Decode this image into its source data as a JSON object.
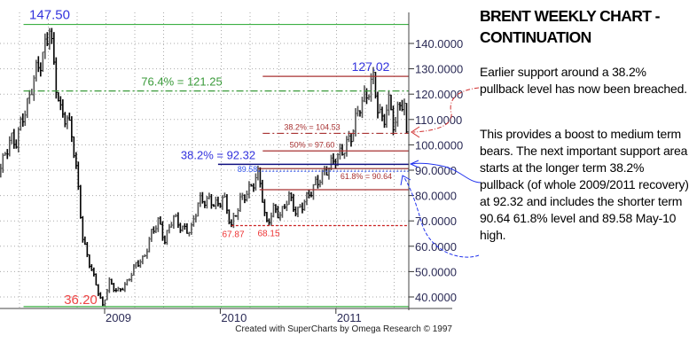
{
  "panel": {
    "title": "BRENT WEEKLY CHART - CONTINUATION",
    "paragraph1": "Earlier support around a 38.2% pullback level has now been breached.",
    "paragraph2": "This provides a boost to medium term bears. The next important support area starts at the longer term 38.2% pullback (of whole 2009/2011 recovery) at 92.32 and includes the shorter term 90.64 61.8% level and 89.58 May-10 high."
  },
  "footer": "Created with SuperCharts by Omega Research © 1997",
  "chart_data": {
    "type": "bar",
    "subtype": "ohlc-weekly",
    "instrument": "Brent",
    "ylim": [
      35,
      150
    ],
    "y_ticks": [
      40,
      50,
      60,
      70,
      80,
      90,
      100,
      110,
      120,
      130,
      140
    ],
    "y_tick_labels": [
      "40.0000",
      "50.0000",
      "60.0000",
      "70.0000",
      "80.0000",
      "90.0000",
      "100.0000",
      "110.0000",
      "120.0000",
      "130.0000",
      "140.0000"
    ],
    "x_ticks": [
      {
        "date": "2009-01-01",
        "label": "2009"
      },
      {
        "date": "2010-01-01",
        "label": "2010"
      },
      {
        "date": "2011-01-01",
        "label": "2011"
      }
    ],
    "xlim": [
      "2008-01-31",
      "2011-08-20"
    ],
    "grid": true,
    "price_path": [
      [
        "2008-02-01",
        90
      ],
      [
        "2008-02-20",
        95
      ],
      [
        "2008-03-10",
        103
      ],
      [
        "2008-03-25",
        100
      ],
      [
        "2008-04-15",
        110
      ],
      [
        "2008-05-08",
        118
      ],
      [
        "2008-05-25",
        128
      ],
      [
        "2008-06-15",
        133
      ],
      [
        "2008-07-04",
        142
      ],
      [
        "2008-07-11",
        147.5
      ],
      [
        "2008-07-30",
        125
      ],
      [
        "2008-08-15",
        113
      ],
      [
        "2008-09-05",
        110
      ],
      [
        "2008-09-20",
        104
      ],
      [
        "2008-10-08",
        85
      ],
      [
        "2008-10-25",
        62
      ],
      [
        "2008-11-15",
        53
      ],
      [
        "2008-12-05",
        45
      ],
      [
        "2008-12-26",
        36.2
      ],
      [
        "2009-01-15",
        46
      ],
      [
        "2009-02-10",
        42
      ],
      [
        "2009-03-10",
        45
      ],
      [
        "2009-04-10",
        53
      ],
      [
        "2009-05-05",
        55
      ],
      [
        "2009-05-28",
        65
      ],
      [
        "2009-06-20",
        70
      ],
      [
        "2009-07-10",
        62
      ],
      [
        "2009-08-05",
        72
      ],
      [
        "2009-09-01",
        67
      ],
      [
        "2009-09-30",
        66
      ],
      [
        "2009-10-25",
        78
      ],
      [
        "2009-11-30",
        78
      ],
      [
        "2009-12-25",
        76
      ],
      [
        "2010-01-10",
        80
      ],
      [
        "2010-02-05",
        67.87
      ],
      [
        "2010-03-05",
        78
      ],
      [
        "2010-04-01",
        82
      ],
      [
        "2010-04-25",
        87
      ],
      [
        "2010-05-03",
        89.58
      ],
      [
        "2010-05-15",
        78
      ],
      [
        "2010-05-25",
        68.15
      ],
      [
        "2010-06-20",
        75
      ],
      [
        "2010-07-10",
        72
      ],
      [
        "2010-08-05",
        80
      ],
      [
        "2010-08-30",
        73
      ],
      [
        "2010-10-01",
        79
      ],
      [
        "2010-10-25",
        84
      ],
      [
        "2010-11-20",
        88
      ],
      [
        "2010-12-20",
        93
      ],
      [
        "2011-01-25",
        98
      ],
      [
        "2011-02-20",
        104
      ],
      [
        "2011-03-15",
        115
      ],
      [
        "2011-04-10",
        120
      ],
      [
        "2011-05-01",
        127.02
      ],
      [
        "2011-05-15",
        112
      ],
      [
        "2011-06-01",
        110
      ],
      [
        "2011-06-20",
        118
      ],
      [
        "2011-07-05",
        105
      ],
      [
        "2011-07-20",
        118
      ],
      [
        "2011-08-05",
        114
      ],
      [
        "2011-08-12",
        104
      ]
    ],
    "levels": [
      {
        "value": 147.5,
        "label": "147.50",
        "color": "#3cb043",
        "style": "solid",
        "from": "2008-04-20",
        "label_color": "#3333dd"
      },
      {
        "value": 121.25,
        "label": "76.4% = 121.25",
        "color": "#3a9a3a",
        "style": "dashdot",
        "from": "2008-04-20",
        "label_color": "#3a9a3a"
      },
      {
        "value": 127.02,
        "label": "127.02",
        "color": "#a83232",
        "style": "solid",
        "from": "2010-05-15",
        "label_color": "#3333dd"
      },
      {
        "value": 104.53,
        "label": "38.2% = 104.53",
        "color": "#a83232",
        "style": "dashdot",
        "from": "2010-05-15",
        "label_color": "#a83232"
      },
      {
        "value": 97.6,
        "label": "50% = 97.60",
        "color": "#a83232",
        "style": "solid",
        "from": "2010-05-15",
        "label_color": "#a83232"
      },
      {
        "value": 92.32,
        "label": "38.2% = 92.32",
        "color": "#101080",
        "style": "solid",
        "from": "2009-12-25",
        "label_color": "#3333dd"
      },
      {
        "value": 90.64,
        "label": "61.8% = 90.64",
        "color": "#8b2020",
        "style": "solid",
        "from": "2010-05-01",
        "label_color": "#a83232"
      },
      {
        "value": 89.58,
        "label": "89.58",
        "color": "#3355ee",
        "style": "dotted",
        "from": "2010-05-01",
        "label_color": "#3355ee"
      },
      {
        "value": 82.3,
        "label": "",
        "color": "#a83232",
        "style": "solid",
        "from": "2010-05-05",
        "label_color": "#a83232"
      },
      {
        "value": 68.15,
        "label": "68.15",
        "color": "#cc2222",
        "style": "dashed",
        "from": "2010-02-05",
        "label_color": "#ee3333"
      },
      {
        "value": 36.2,
        "label": "36.20",
        "color": "#3cb043",
        "style": "solid",
        "from": "2008-04-20",
        "label_color": "#ee4444"
      }
    ],
    "extra_labels": [
      {
        "value": 67.87,
        "label": "67.87",
        "color": "#ee3333"
      }
    ]
  }
}
